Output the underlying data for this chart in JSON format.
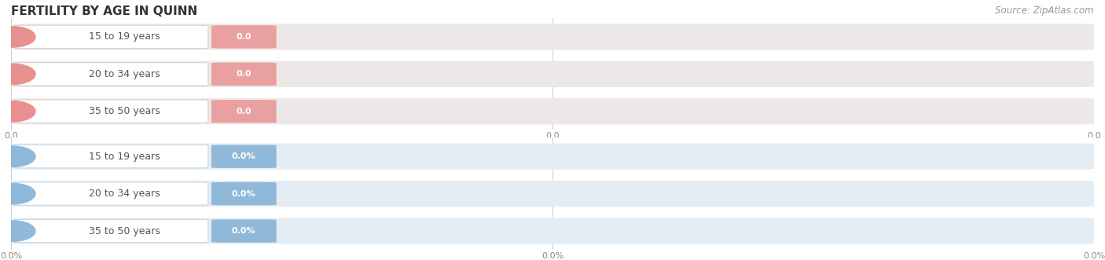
{
  "title": "FERTILITY BY AGE IN QUINN",
  "source": "Source: ZipAtlas.com",
  "sections": [
    {
      "categories": [
        "15 to 19 years",
        "20 to 34 years",
        "35 to 50 years"
      ],
      "values": [
        "0.0",
        "0.0",
        "0.0"
      ],
      "bar_bg_color": "#ede8e8",
      "bar_fill_color": "#e8a0a0",
      "icon_color": "#e89090",
      "white_pill_color": "#ffffff",
      "white_pill_edge": "#e0d0d0",
      "value_bg_color": "#e8a0a0",
      "value_text_color": "#ffffff",
      "label_text_color": "#555555",
      "x_tick_labels": [
        "0.0",
        "0.0",
        "0.0"
      ]
    },
    {
      "categories": [
        "15 to 19 years",
        "20 to 34 years",
        "35 to 50 years"
      ],
      "values": [
        "0.0%",
        "0.0%",
        "0.0%"
      ],
      "bar_bg_color": "#e4ecf4",
      "bar_fill_color": "#90b8d8",
      "icon_color": "#90b8d8",
      "white_pill_color": "#ffffff",
      "white_pill_edge": "#c8d8e8",
      "value_bg_color": "#90b8d8",
      "value_text_color": "#ffffff",
      "label_text_color": "#555555",
      "x_tick_labels": [
        "0.0%",
        "0.0%",
        "0.0%"
      ]
    }
  ],
  "bg_color": "#ffffff",
  "grid_color": "#cccccc",
  "title_fontsize": 11,
  "label_fontsize": 9,
  "value_fontsize": 8,
  "tick_fontsize": 8,
  "source_fontsize": 8.5,
  "source_color": "#999999",
  "title_color": "#333333"
}
